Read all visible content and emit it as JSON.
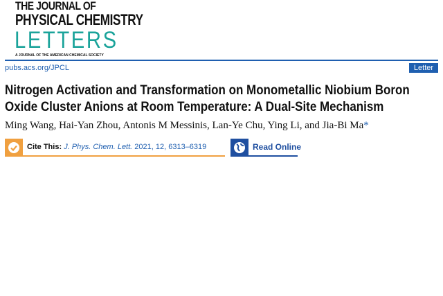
{
  "journal": {
    "line1": "THE JOURNAL OF",
    "line2": "PHYSICAL CHEMISTRY",
    "line3": "LETTERS",
    "tagline": "A JOURNAL OF THE AMERICAN CHEMICAL SOCIETY"
  },
  "url": "pubs.acs.org/JPCL",
  "article_type": "Letter",
  "title": "Nitrogen Activation and Transformation on Monometallic Niobium Boron Oxide Cluster Anions at Room Temperature: A Dual-Site Mechanism",
  "authors": "Ming Wang, Hai-Yan Zhou, Antonis M Messinis, Lan-Ye Chu, Ying Li, and Jia-Bi Ma",
  "corresponding_mark": "*",
  "cite": {
    "label": "Cite This:",
    "journal": "J. Phys. Chem. Lett.",
    "details": " 2021, 12, 6313–6319",
    "icon": "check-icon"
  },
  "read_online": {
    "label": "Read Online",
    "icon": "globe-icon"
  },
  "colors": {
    "accent": "#1f5fb0",
    "teal": "#1aa39a",
    "orange": "#f0a040"
  }
}
